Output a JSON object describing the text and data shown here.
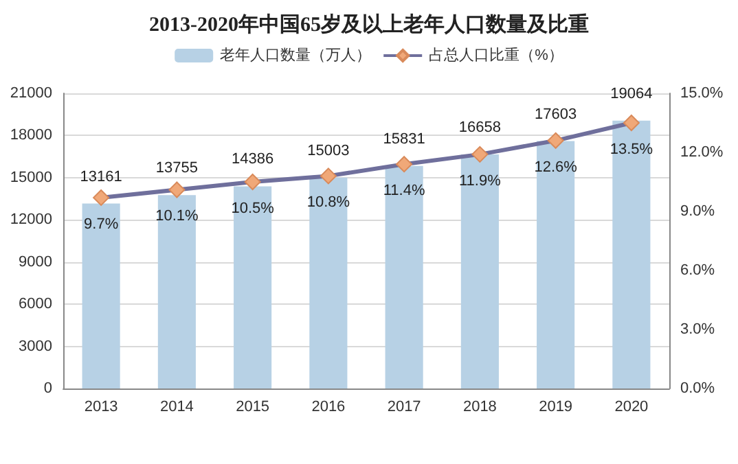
{
  "chart_data": {
    "type": "bar",
    "title": "2013-2020年中国65岁及以上老年人口数量及比重",
    "categories": [
      "2013",
      "2014",
      "2015",
      "2016",
      "2017",
      "2018",
      "2019",
      "2020"
    ],
    "series": [
      {
        "name": "老年人口数量（万人）",
        "color": "#b7d1e5",
        "values": [
          13161,
          13755,
          14386,
          15003,
          15831,
          16658,
          17603,
          19064
        ]
      },
      {
        "name": "占总人口比重（%）",
        "type": "line",
        "axis": "y2",
        "color": "#6f6f9c",
        "marker": "diamond",
        "values": [
          9.7,
          10.1,
          10.5,
          10.8,
          11.4,
          11.9,
          12.6,
          13.5
        ],
        "value_labels": [
          "9.7%",
          "10.1%",
          "10.5%",
          "10.8%",
          "11.4%",
          "11.9%",
          "12.6%",
          "13.5%"
        ]
      }
    ],
    "ylim": [
      0,
      21000
    ],
    "yticks": [
      0,
      3000,
      6000,
      9000,
      12000,
      15000,
      18000,
      21000
    ],
    "y2lim": [
      0,
      15
    ],
    "y2ticks": [
      {
        "value": 0,
        "label": "0.0%"
      },
      {
        "value": 3,
        "label": "3.0%"
      },
      {
        "value": 6,
        "label": "6.0%"
      },
      {
        "value": 9,
        "label": "9.0%"
      },
      {
        "value": 12,
        "label": "12.0%"
      },
      {
        "value": 15,
        "label": "15.0%"
      }
    ],
    "data_labels": true,
    "grid": "y",
    "legend": "top"
  }
}
